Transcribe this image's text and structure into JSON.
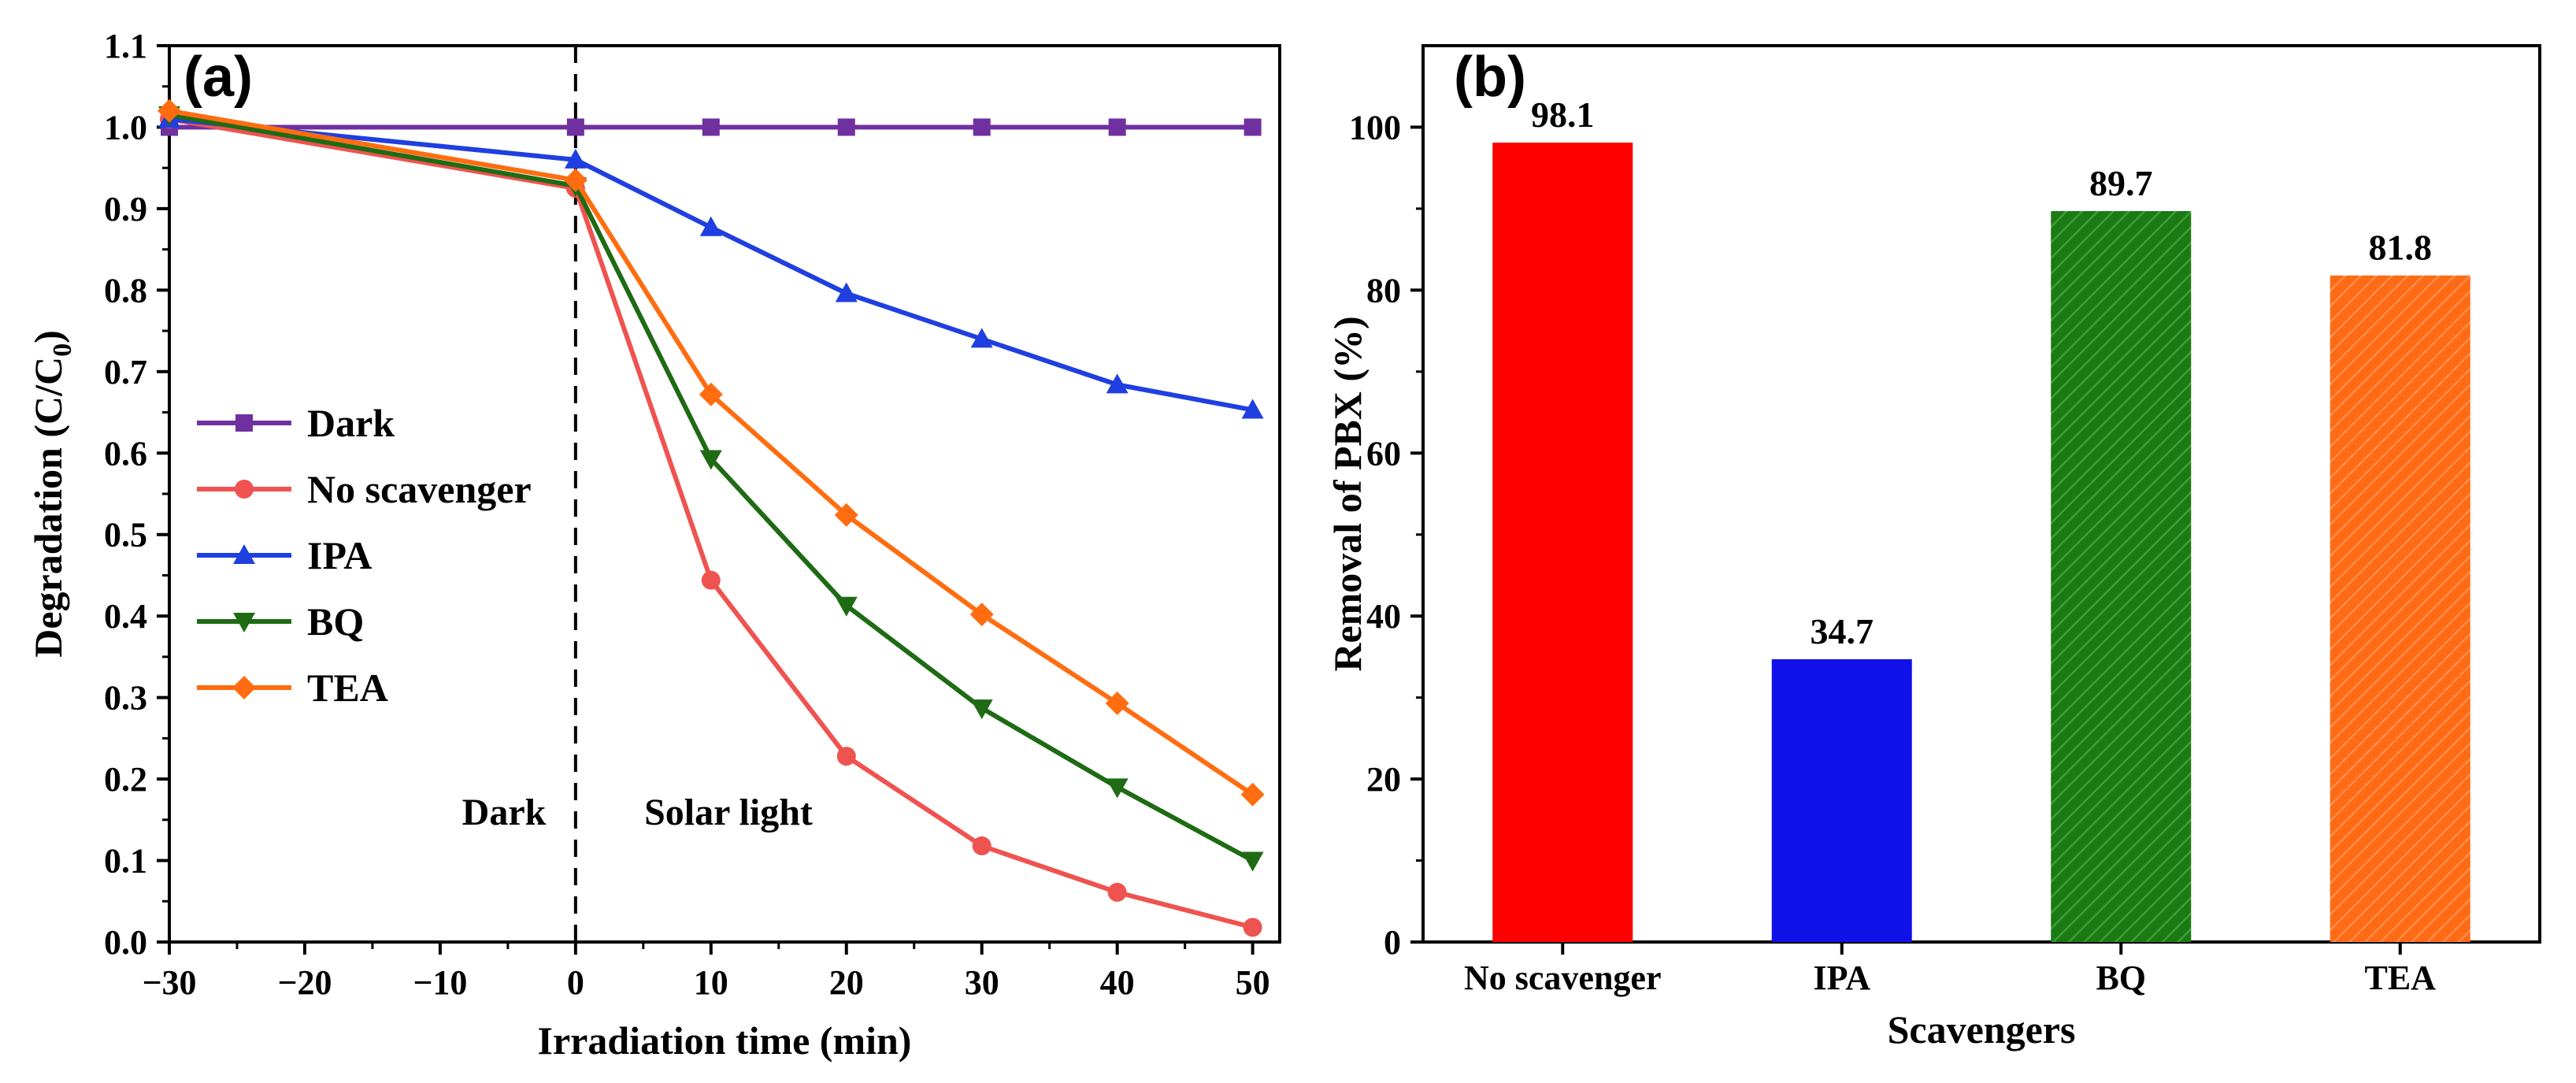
{
  "chart_data": [
    {
      "type": "line",
      "panel_label": "(a)",
      "xlabel": "Irradiation time (min)",
      "ylabel_main": "Degradation (C/C",
      "ylabel_sub": "0",
      "ylabel_close": ")",
      "xlim": [
        -30,
        52
      ],
      "ylim": [
        0.0,
        1.1
      ],
      "x_ticks": [
        -30,
        -20,
        -10,
        0,
        10,
        20,
        30,
        40,
        50
      ],
      "x_tick_labels": [
        "−30",
        "−20",
        "−10",
        "0",
        "10",
        "20",
        "30",
        "40",
        "50"
      ],
      "y_ticks": [
        0.0,
        0.1,
        0.2,
        0.3,
        0.4,
        0.5,
        0.6,
        0.7,
        0.8,
        0.9,
        1.0,
        1.1
      ],
      "y_tick_labels": [
        "0.0",
        "0.1",
        "0.2",
        "0.3",
        "0.4",
        "0.5",
        "0.6",
        "0.7",
        "0.8",
        "0.9",
        "1.0",
        "1.1"
      ],
      "divider_x": 0,
      "region_labels": [
        "Dark",
        "Solar light"
      ],
      "legend_position": "middle-left",
      "series": [
        {
          "name": "Dark",
          "color": "#7030a0",
          "marker": "square",
          "x": [
            -30,
            0,
            10,
            20,
            30,
            40,
            50
          ],
          "y": [
            1.0,
            1.0,
            1.0,
            1.0,
            1.0,
            1.0,
            1.0
          ]
        },
        {
          "name": "No scavenger",
          "color": "#ef5350",
          "marker": "circle",
          "x": [
            -30,
            0,
            10,
            20,
            30,
            40,
            50
          ],
          "y": [
            1.01,
            0.925,
            0.444,
            0.228,
            0.118,
            0.061,
            0.018
          ]
        },
        {
          "name": "IPA",
          "color": "#1f3fe0",
          "marker": "triangle-up",
          "x": [
            -30,
            0,
            10,
            20,
            30,
            40,
            50
          ],
          "y": [
            1.01,
            0.96,
            0.877,
            0.796,
            0.74,
            0.684,
            0.653
          ]
        },
        {
          "name": "BQ",
          "color": "#1e6b14",
          "marker": "triangle-down",
          "x": [
            -30,
            0,
            10,
            20,
            30,
            40,
            50
          ],
          "y": [
            1.015,
            0.928,
            0.593,
            0.413,
            0.287,
            0.19,
            0.1
          ]
        },
        {
          "name": "TEA",
          "color": "#ff6d10",
          "marker": "diamond",
          "x": [
            -30,
            0,
            10,
            20,
            30,
            40,
            50
          ],
          "y": [
            1.02,
            0.935,
            0.672,
            0.524,
            0.402,
            0.293,
            0.181
          ]
        }
      ]
    },
    {
      "type": "bar",
      "panel_label": "(b)",
      "xlabel": "Scavengers",
      "ylabel": "Removal of PBX (%)",
      "ylim": [
        0,
        110
      ],
      "y_ticks": [
        0,
        20,
        40,
        60,
        80,
        100
      ],
      "y_tick_labels": [
        "0",
        "20",
        "40",
        "60",
        "80",
        "100"
      ],
      "categories": [
        "No scavenger",
        "IPA",
        "BQ",
        "TEA"
      ],
      "values": [
        98.1,
        34.7,
        89.7,
        81.8
      ],
      "value_labels": [
        "98.1",
        "34.7",
        "89.7",
        "81.8"
      ],
      "colors": [
        "#ff0000",
        "#1010e8",
        "#1a7a14",
        "#ff6a14"
      ],
      "hatched": [
        false,
        false,
        true,
        true
      ]
    }
  ]
}
